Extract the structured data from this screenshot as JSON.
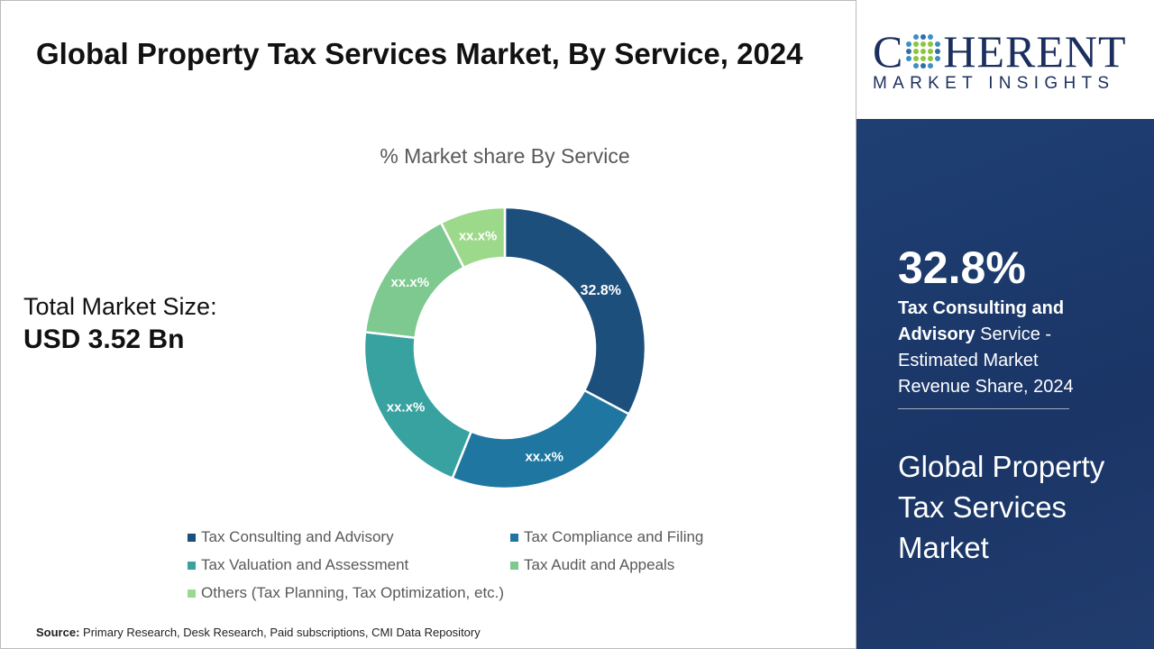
{
  "header": {
    "title": "Global Property Tax Services Market, By Service, 2024"
  },
  "total": {
    "label": "Total Market Size:",
    "value": "USD 3.52 Bn"
  },
  "chart_data": {
    "type": "pie",
    "donut": true,
    "title": "% Market share By Service",
    "categories": [
      "Tax Consulting and Advisory",
      "Tax Compliance and Filing",
      "Tax Valuation and Assessment",
      "Tax Audit and Appeals",
      "Others (Tax Planning, Tax Optimization, etc.)"
    ],
    "values": [
      32.8,
      23.3,
      20.7,
      15.7,
      7.5
    ],
    "data_labels": [
      "32.8%",
      "xx.x%",
      "xx.x%",
      "xx.x%",
      "xx.x%"
    ],
    "colors": [
      "#1d4f7c",
      "#1f77a1",
      "#37a2a0",
      "#7dc98f",
      "#9dd98a"
    ],
    "legend_position": "bottom"
  },
  "source": {
    "label": "Source:",
    "text": "Primary Research, Desk Research, Paid subscriptions, CMI Data Repository"
  },
  "logo": {
    "top": "COHERENT",
    "bottom": "MARKET INSIGHTS"
  },
  "sidebar": {
    "pct": "32.8%",
    "desc_bold": "Tax Consulting and Advisory",
    "desc_rest": " Service - Estimated Market Revenue Share, 2024",
    "market_name": "Global Property Tax Services Market"
  }
}
